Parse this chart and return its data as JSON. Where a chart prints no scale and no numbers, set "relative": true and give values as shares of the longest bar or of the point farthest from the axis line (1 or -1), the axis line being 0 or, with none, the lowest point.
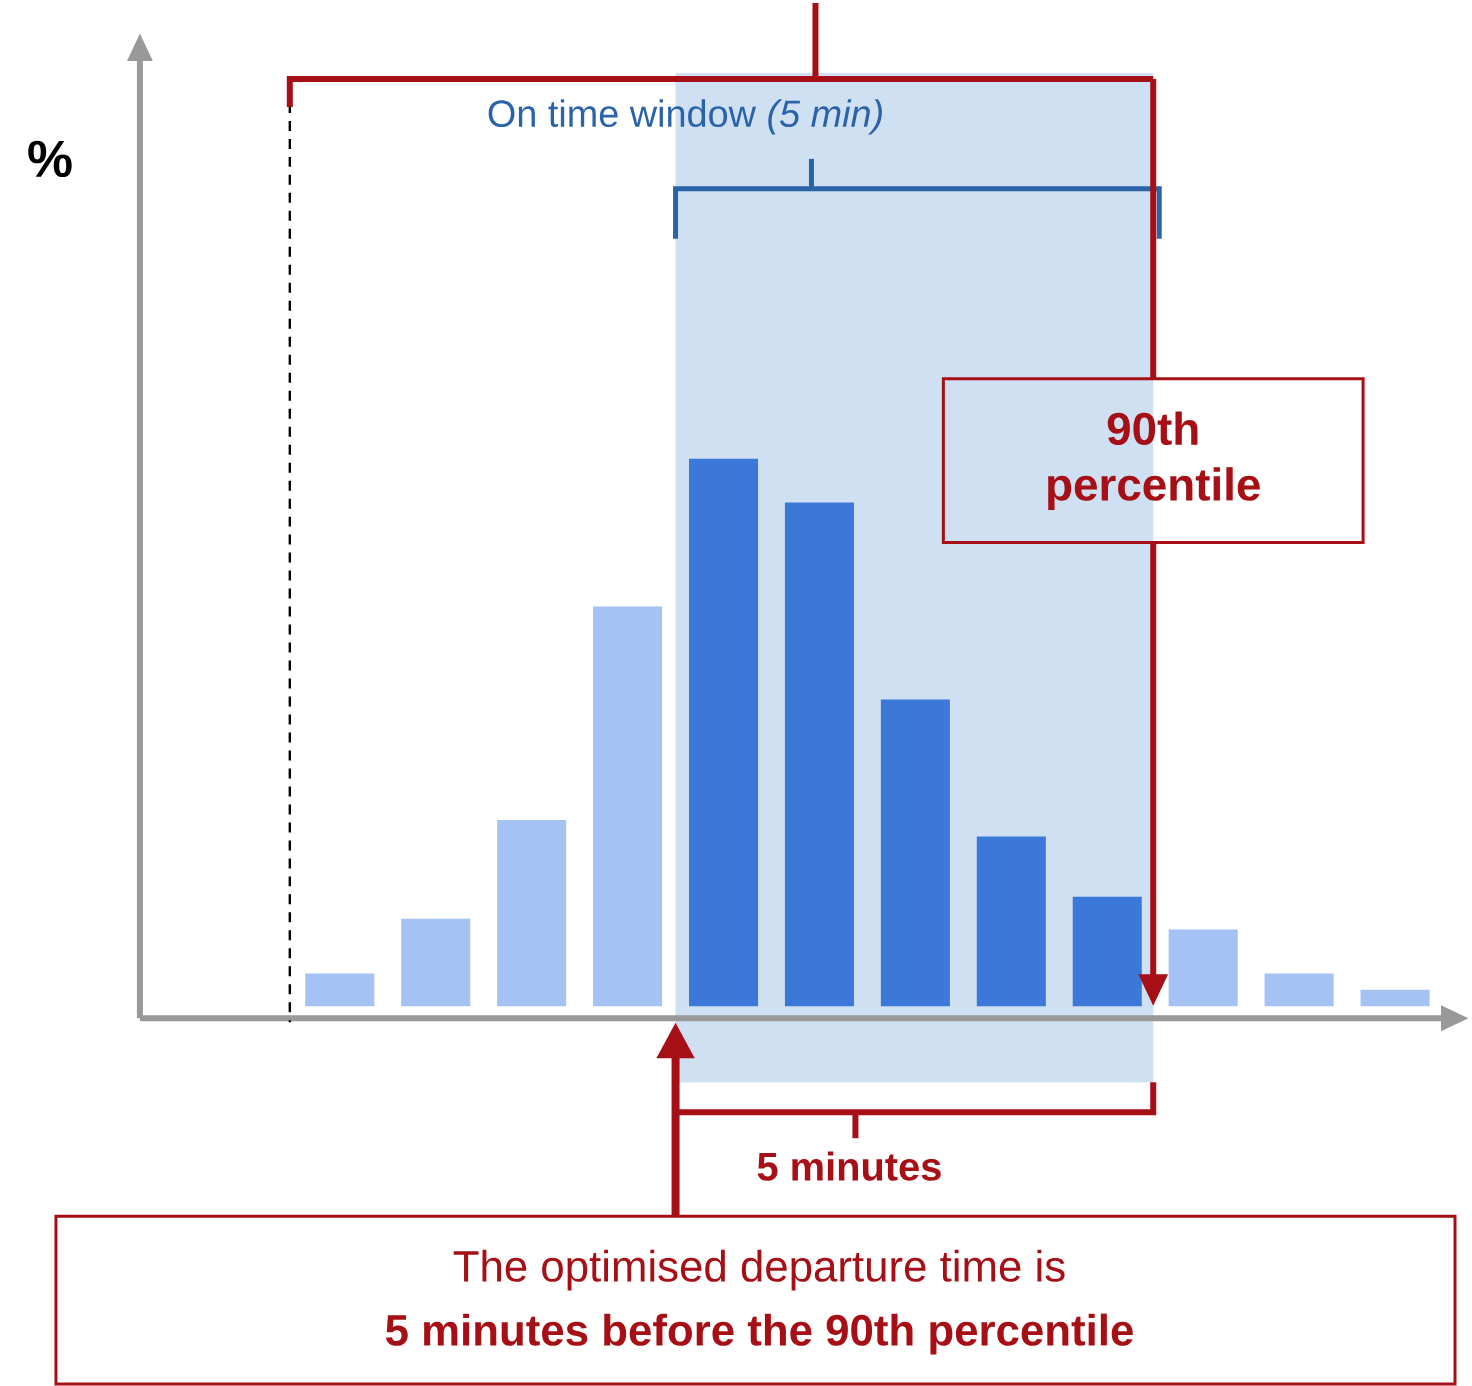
{
  "chart_data": {
    "type": "bar",
    "relative": true,
    "categories": [
      null,
      null,
      null,
      null,
      null,
      null,
      null,
      null,
      null,
      null,
      null,
      null
    ],
    "values": [
      0.06,
      0.16,
      0.34,
      0.73,
      1,
      0.92,
      0.56,
      0.31,
      0.2,
      0.14,
      0.06,
      0.03
    ],
    "colors": [
      "#a4c2f4",
      "#a4c2f4",
      "#a4c2f4",
      "#a4c2f4",
      "#3c78d8",
      "#3c78d8",
      "#3c78d8",
      "#3c78d8",
      "#3c78d8",
      "#a4c2f4",
      "#a4c2f4",
      "#a4c2f4"
    ],
    "annotations": [
      "%",
      "On time window *(5 min)*",
      "90th percentile",
      "5 minutes",
      "The optimised departure time is",
      "5 minutes before the 90th percentile"
    ]
  }
}
